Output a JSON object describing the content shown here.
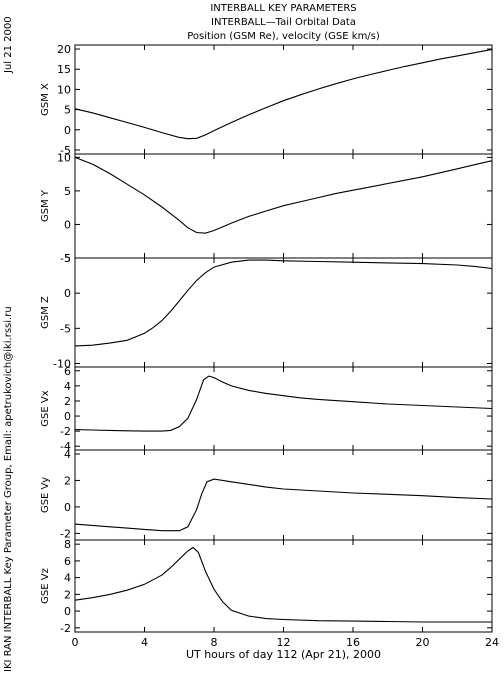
{
  "header": {
    "date": "Jul 21 2000",
    "title_lines": [
      "INTERBALL KEY PARAMETERS",
      "INTERBALL—Tail Orbital Data",
      "Position (GSM Re), velocity (GSE km/s)"
    ],
    "credit": "IKI RAN INTERBALL Key Parameter Group, Email: apetrukovich@iki.rssi.ru"
  },
  "chart_data": {
    "type": "line",
    "xlabel": "UT hours of day 112 (Apr 21), 2000",
    "xlim": [
      0,
      24
    ],
    "xticks": [
      0,
      4,
      8,
      12,
      16,
      20,
      24
    ],
    "panels": [
      {
        "ylabel": "GSM X",
        "ylim": [
          -6,
          21
        ],
        "yticks": [
          -5,
          0,
          5,
          10,
          15,
          20
        ],
        "x": [
          0,
          1,
          2,
          3,
          4,
          5,
          6,
          6.5,
          7,
          7.5,
          8,
          9,
          10,
          11,
          12,
          13,
          14,
          15,
          16,
          17,
          18,
          19,
          20,
          21,
          22,
          23,
          24
        ],
        "y": [
          5.2,
          4.2,
          3.0,
          1.8,
          0.6,
          -0.7,
          -1.9,
          -2.2,
          -2.1,
          -1.3,
          -0.2,
          1.8,
          3.7,
          5.5,
          7.2,
          8.7,
          10.1,
          11.4,
          12.6,
          13.7,
          14.7,
          15.7,
          16.6,
          17.5,
          18.3,
          19.1,
          19.9
        ]
      },
      {
        "ylabel": "GSM Y",
        "ylim": [
          -5,
          10.5
        ],
        "yticks": [
          -5,
          0,
          5,
          10
        ],
        "x": [
          0,
          1,
          2,
          3,
          4,
          5,
          6,
          6.5,
          7,
          7.5,
          8,
          9,
          10,
          11,
          12,
          13,
          14,
          15,
          16,
          17,
          18,
          19,
          20,
          21,
          22,
          23,
          24
        ],
        "y": [
          10.0,
          9.0,
          7.6,
          6.0,
          4.4,
          2.6,
          0.6,
          -0.5,
          -1.2,
          -1.3,
          -0.9,
          0.2,
          1.2,
          2.0,
          2.8,
          3.4,
          4.0,
          4.6,
          5.1,
          5.6,
          6.1,
          6.6,
          7.1,
          7.7,
          8.3,
          8.9,
          9.5
        ]
      },
      {
        "ylabel": "GSM Z",
        "ylim": [
          -10.5,
          5
        ],
        "yticks": [
          -10,
          -5,
          0,
          5
        ],
        "x": [
          0,
          1,
          2,
          3,
          4,
          4.5,
          5,
          5.5,
          6,
          6.5,
          7,
          7.5,
          8,
          9,
          10,
          11,
          12,
          14,
          16,
          18,
          20,
          22,
          23,
          24
        ],
        "y": [
          -7.5,
          -7.4,
          -7.1,
          -6.7,
          -5.7,
          -4.9,
          -3.9,
          -2.6,
          -1.1,
          0.4,
          1.8,
          2.9,
          3.7,
          4.4,
          4.7,
          4.7,
          4.6,
          4.5,
          4.4,
          4.3,
          4.2,
          4.0,
          3.8,
          3.5
        ]
      },
      {
        "ylabel": "GSE Vx",
        "ylim": [
          -4.5,
          6.5
        ],
        "yticks": [
          -4,
          -2,
          0,
          2,
          4,
          6
        ],
        "x": [
          0,
          1,
          2,
          3,
          4,
          5,
          5.5,
          6,
          6.5,
          7,
          7.4,
          7.7,
          8,
          8.5,
          9,
          10,
          11,
          12,
          13,
          14,
          16,
          18,
          20,
          22,
          24
        ],
        "y": [
          -1.8,
          -1.85,
          -1.9,
          -1.95,
          -2.0,
          -2.0,
          -1.9,
          -1.4,
          -0.3,
          2.2,
          4.8,
          5.3,
          5.1,
          4.5,
          4.0,
          3.4,
          3.0,
          2.7,
          2.4,
          2.2,
          1.9,
          1.6,
          1.4,
          1.2,
          1.0
        ]
      },
      {
        "ylabel": "GSE Vy",
        "ylim": [
          -2.5,
          4.3
        ],
        "yticks": [
          -2,
          0,
          2,
          4
        ],
        "x": [
          0,
          1,
          2,
          3,
          4,
          5,
          6,
          6.5,
          7,
          7.3,
          7.6,
          8,
          8.5,
          9,
          10,
          11,
          12,
          14,
          16,
          18,
          20,
          22,
          24
        ],
        "y": [
          -1.3,
          -1.4,
          -1.5,
          -1.6,
          -1.7,
          -1.8,
          -1.8,
          -1.5,
          -0.2,
          1.0,
          1.9,
          2.1,
          2.0,
          1.9,
          1.7,
          1.5,
          1.35,
          1.2,
          1.05,
          0.95,
          0.85,
          0.7,
          0.6
        ]
      },
      {
        "ylabel": "GSE Vz",
        "ylim": [
          -2.5,
          8.5
        ],
        "yticks": [
          -2,
          0,
          2,
          4,
          6,
          8
        ],
        "x": [
          0,
          1,
          2,
          3,
          4,
          5,
          5.5,
          6,
          6.5,
          6.8,
          7.1,
          7.5,
          8,
          8.5,
          9,
          10,
          11,
          12,
          14,
          16,
          18,
          20,
          22,
          24
        ],
        "y": [
          1.3,
          1.6,
          2.0,
          2.5,
          3.2,
          4.3,
          5.2,
          6.2,
          7.2,
          7.6,
          7.0,
          4.8,
          2.6,
          1.1,
          0.1,
          -0.6,
          -0.9,
          -1.0,
          -1.15,
          -1.2,
          -1.25,
          -1.3,
          -1.3,
          -1.3
        ]
      }
    ]
  }
}
